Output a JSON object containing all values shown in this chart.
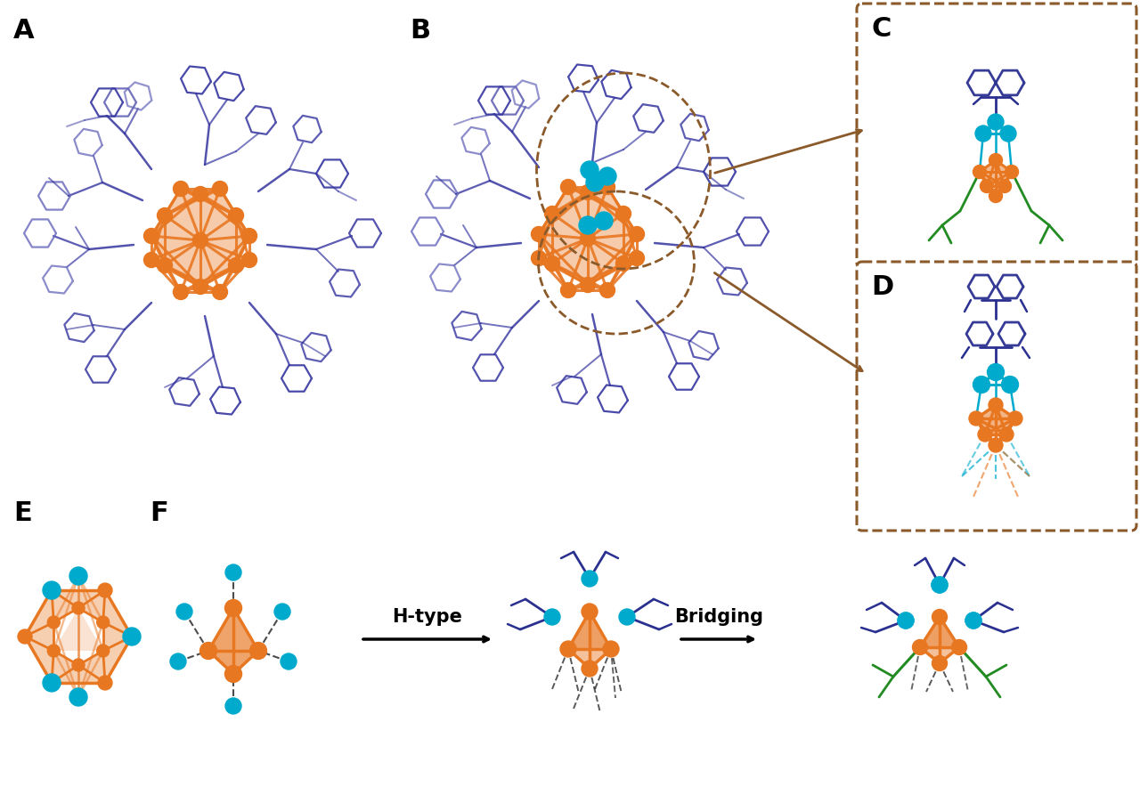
{
  "figsize": [
    12.8,
    8.93
  ],
  "dpi": 100,
  "bg_color": "#ffffff",
  "label_A": "A",
  "label_B": "B",
  "label_C": "C",
  "label_D": "D",
  "label_E": "E",
  "label_F": "F",
  "text_htype": "H-type",
  "text_bridging": "Bridging",
  "orange": "#E87722",
  "cyan": "#00AACC",
  "dark_blue": "#2A3090",
  "purple_ligand": "#4A4AAA",
  "light_purple": "#8888CC",
  "green": "#228B22",
  "brown": "#8B5A2B",
  "arrow_brown": "#7B4F2E"
}
